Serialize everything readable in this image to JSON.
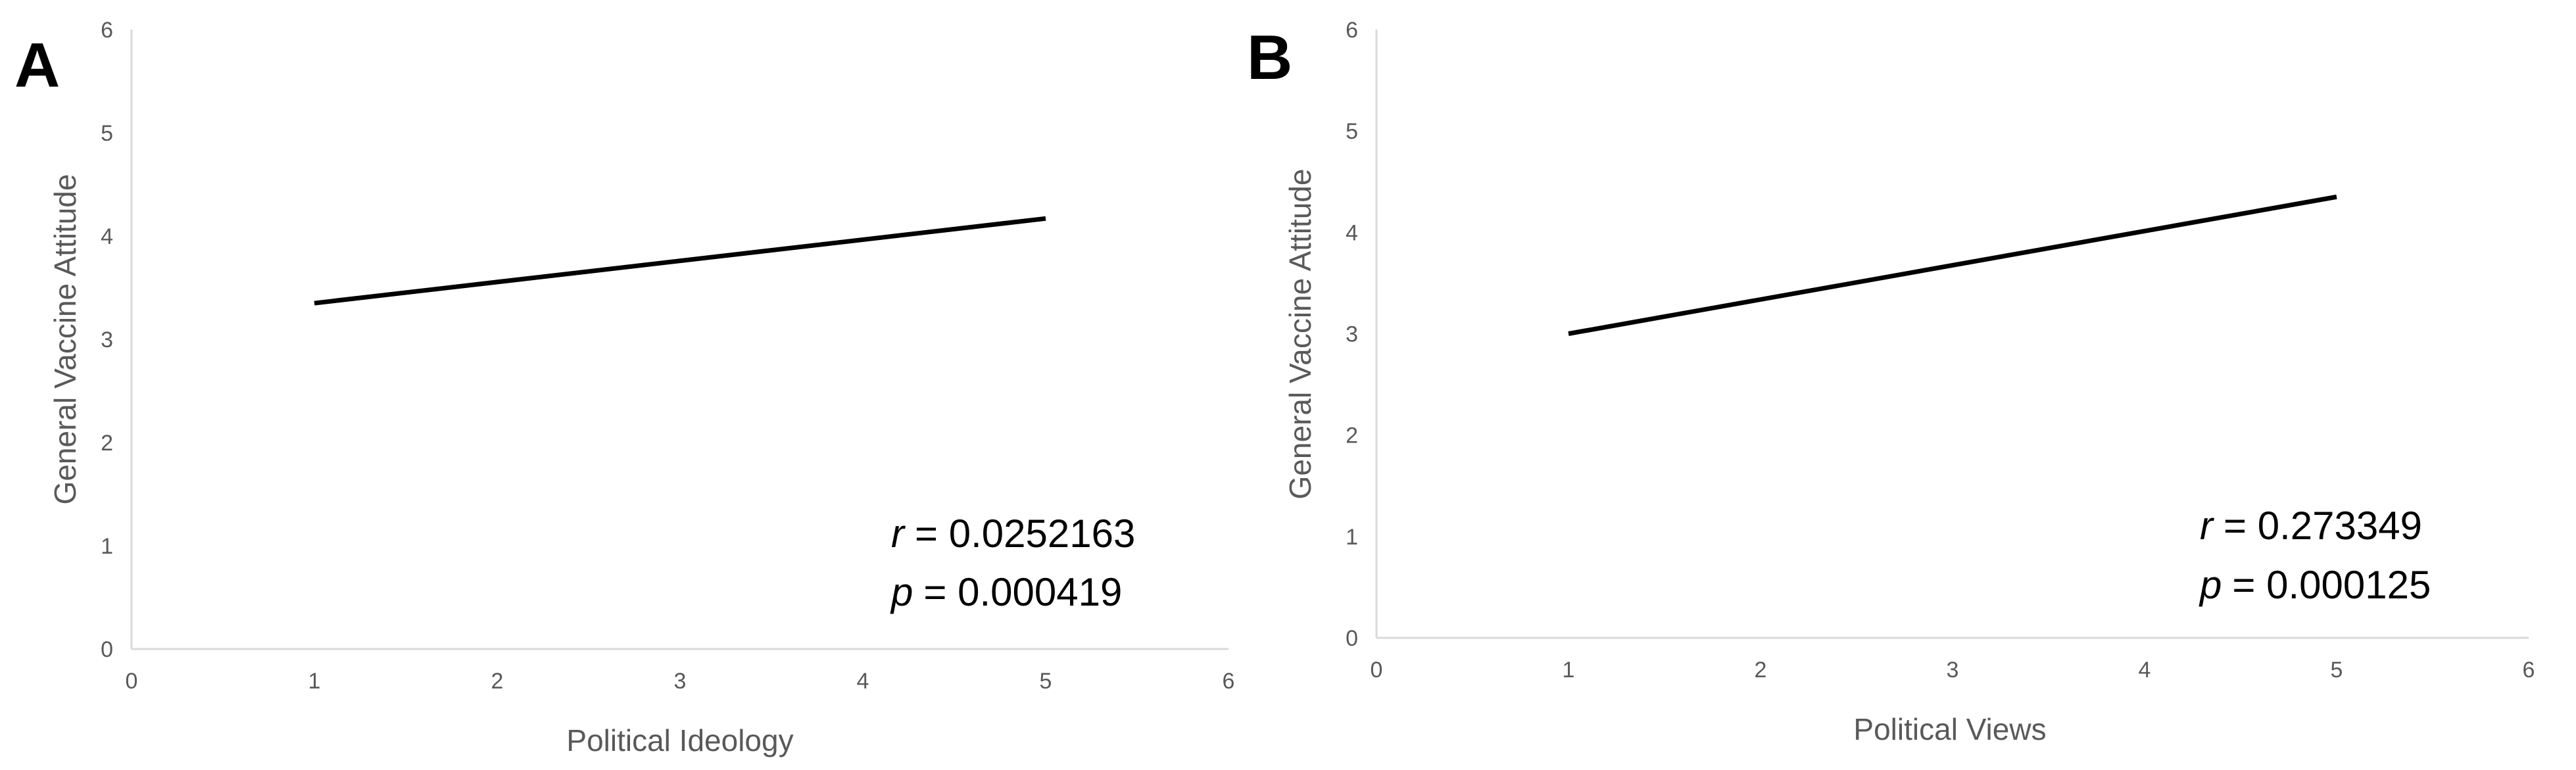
{
  "chart_data": [
    {
      "type": "line",
      "panel": "A",
      "xlabel": "Political Ideology",
      "ylabel": "General Vaccine Attitude",
      "xlim": [
        0,
        6
      ],
      "ylim": [
        0,
        6
      ],
      "x_ticks": [
        "0",
        "1",
        "2",
        "3",
        "4",
        "5",
        "6"
      ],
      "y_ticks": [
        "0",
        "1",
        "2",
        "3",
        "4",
        "5",
        "6"
      ],
      "grid": false,
      "series": [
        {
          "x": [
            1,
            5
          ],
          "y": [
            3.35,
            4.17
          ]
        }
      ],
      "annotations": {
        "r_label": "r",
        "r_value": "= 0.0252163",
        "p_label": "p",
        "p_value": "= 0.000419"
      },
      "color": "#000000"
    },
    {
      "type": "line",
      "panel": "B",
      "xlabel": "Political Views",
      "ylabel": "General Vaccine Attitude",
      "xlim": [
        0,
        6
      ],
      "ylim": [
        0,
        6
      ],
      "x_ticks": [
        "0",
        "1",
        "2",
        "3",
        "4",
        "5",
        "6"
      ],
      "y_ticks": [
        "0",
        "1",
        "2",
        "3",
        "4",
        "5",
        "6"
      ],
      "grid": false,
      "series": [
        {
          "x": [
            1,
            5
          ],
          "y": [
            3.0,
            4.35
          ]
        }
      ],
      "annotations": {
        "r_label": "r",
        "r_value": "= 0.273349",
        "p_label": "p",
        "p_value": "= 0.000125"
      },
      "color": "#000000"
    }
  ]
}
